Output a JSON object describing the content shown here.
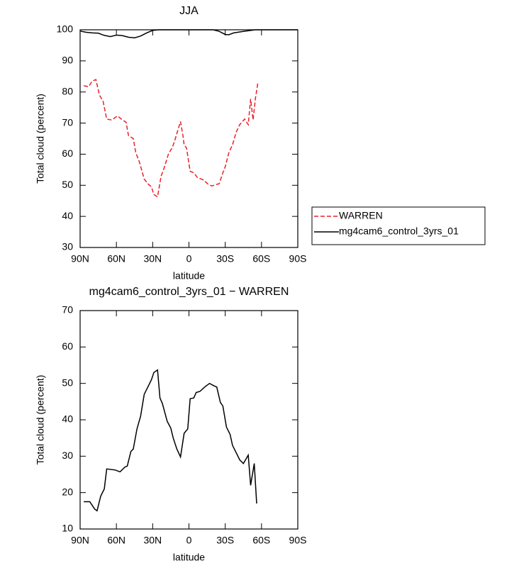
{
  "chart_data": [
    {
      "type": "line",
      "title": "JJA",
      "xlabel": "latitude",
      "ylabel": "Total cloud (percent)",
      "xlim": [
        90,
        -90
      ],
      "ylim": [
        30,
        100
      ],
      "xticks": [
        {
          "value": 90,
          "label": "90N"
        },
        {
          "value": 60,
          "label": "60N"
        },
        {
          "value": 30,
          "label": "30N"
        },
        0,
        {
          "value": -30,
          "label": "30S"
        },
        {
          "value": -60,
          "label": "60S"
        },
        {
          "value": -90,
          "label": "90S"
        }
      ],
      "yticks": [
        30,
        40,
        50,
        60,
        70,
        80,
        90,
        100
      ],
      "legend": "right",
      "series": [
        {
          "name": "WARREN",
          "color": "#e8222a",
          "linestyle": "dashed",
          "x": [
            87,
            83,
            80,
            77,
            74,
            71,
            68,
            64,
            59,
            55,
            52,
            50,
            46,
            44,
            41,
            37,
            34,
            31,
            29,
            26,
            23,
            21,
            17,
            14,
            12,
            9,
            7,
            5,
            4,
            2,
            -1,
            -4,
            -7,
            -12,
            -16,
            -19,
            -23,
            -25,
            -28,
            -30,
            -33,
            -36,
            -39,
            -42,
            -46,
            -49,
            -51,
            -53,
            -55,
            -57
          ],
          "values": [
            82,
            81.7,
            83.5,
            84,
            79,
            77,
            71.3,
            71,
            72.3,
            71,
            70.3,
            66,
            65,
            60.5,
            57.5,
            52,
            50.5,
            49.5,
            47,
            46.3,
            53,
            55,
            60,
            62,
            64,
            68,
            70.5,
            66,
            63,
            62,
            54.5,
            54,
            52.5,
            51.7,
            50.3,
            49.8,
            50.3,
            50.5,
            54,
            56,
            60.5,
            63,
            67,
            69.5,
            71.3,
            69.5,
            77.8,
            71,
            78,
            83
          ]
        },
        {
          "name": "mg4cam6_control_3yrs_01",
          "color": "#000000",
          "linestyle": "solid",
          "x": [
            90,
            85,
            80,
            75,
            70,
            65,
            60,
            55,
            50,
            45,
            40,
            35,
            30,
            25,
            0,
            -20,
            -25,
            -30,
            -33,
            -37,
            -45,
            -55,
            -90
          ],
          "values": [
            99.6,
            99.2,
            99,
            98.9,
            98.2,
            97.8,
            98.3,
            98.1,
            97.6,
            97.4,
            98,
            99,
            99.8,
            100,
            100,
            100,
            99.5,
            98.5,
            98.4,
            99,
            99.5,
            100,
            100
          ]
        }
      ]
    },
    {
      "type": "line",
      "title": "mg4cam6_control_3yrs_01 − WARREN",
      "xlabel": "latitude",
      "ylabel": "Total cloud (percent)",
      "xlim": [
        90,
        -90
      ],
      "ylim": [
        10,
        70
      ],
      "xticks": [
        {
          "value": 90,
          "label": "90N"
        },
        {
          "value": 60,
          "label": "60N"
        },
        {
          "value": 30,
          "label": "30N"
        },
        0,
        {
          "value": -30,
          "label": "30S"
        },
        {
          "value": -60,
          "label": "60S"
        },
        {
          "value": -90,
          "label": "90S"
        }
      ],
      "yticks": [
        10,
        20,
        30,
        40,
        50,
        60,
        70
      ],
      "series": [
        {
          "color": "#000000",
          "linestyle": "solid",
          "x": [
            87,
            82,
            78,
            76,
            73,
            70,
            68,
            61,
            57,
            53,
            51,
            48,
            46,
            43,
            40,
            37,
            34,
            31,
            29,
            26,
            24,
            22,
            18,
            15,
            13,
            10,
            7,
            4,
            1,
            -1,
            -4,
            -6,
            -9,
            -13,
            -17,
            -21,
            -23,
            -26,
            -28,
            -31,
            -34,
            -36,
            -39,
            -42,
            -45,
            -49,
            -51,
            -54,
            -56
          ],
          "values": [
            17.5,
            17.5,
            15.5,
            15,
            19,
            21,
            26.5,
            26.2,
            25.7,
            27,
            27.3,
            31.3,
            32,
            37.5,
            41,
            47,
            49,
            51,
            53,
            53.7,
            46,
            44.5,
            39.6,
            37.7,
            35,
            32,
            29.8,
            36.3,
            37.5,
            45.8,
            46,
            47.5,
            47.8,
            49,
            50,
            49.3,
            49,
            44.8,
            43.8,
            38,
            36,
            33,
            31,
            29,
            28,
            30.3,
            22,
            28,
            17
          ]
        }
      ]
    }
  ]
}
